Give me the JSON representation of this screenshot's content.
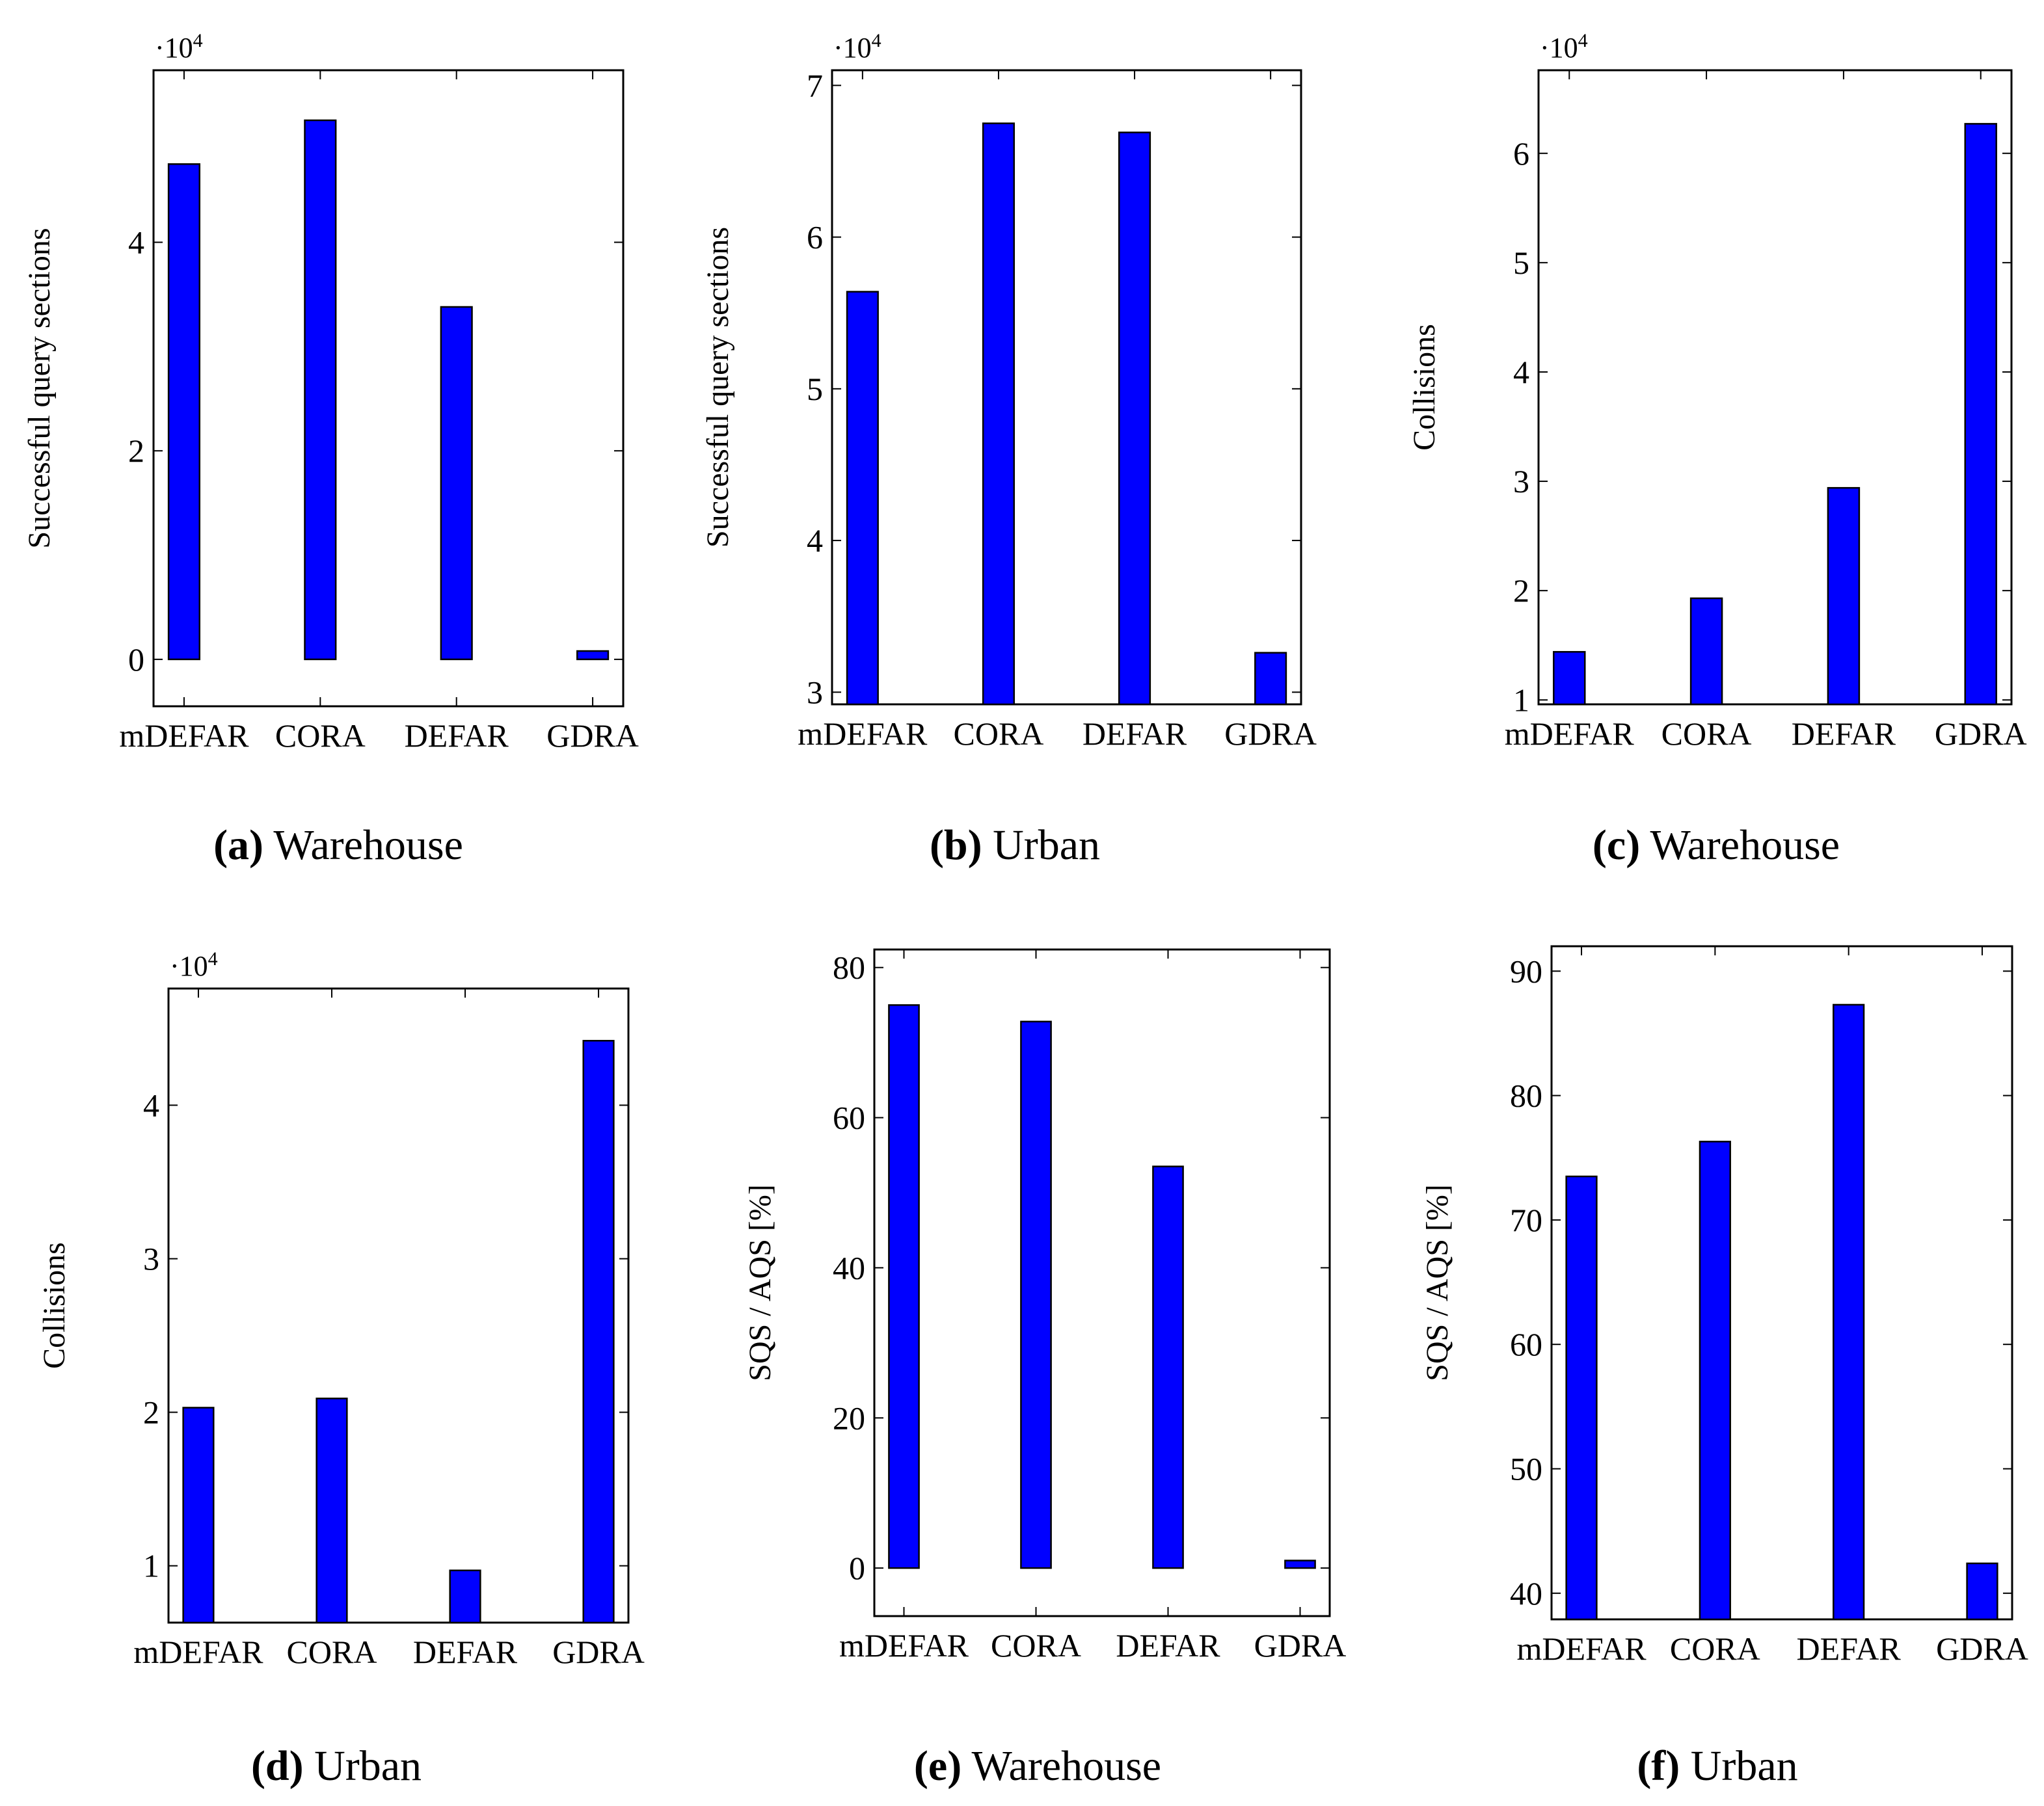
{
  "chart_data": [
    {
      "id": "a",
      "type": "bar",
      "caption_letter": "(a)",
      "caption_text": "Warehouse",
      "ylabel": "Successful query sections",
      "multiplier": "·10",
      "multiplier_exp": "4",
      "categories": [
        "mDEFAR",
        "CORA",
        "DEFAR",
        "GDRA"
      ],
      "values": [
        47500,
        51700,
        33800,
        800
      ],
      "ylim": [
        -4500,
        56500
      ],
      "yticks": [
        0,
        20000,
        40000
      ],
      "ytick_labels": [
        "0",
        "2",
        "4"
      ]
    },
    {
      "id": "b",
      "type": "bar",
      "caption_letter": "(b)",
      "caption_text": "Urban",
      "ylabel": "Successful query sections",
      "multiplier": "·10",
      "multiplier_exp": "4",
      "categories": [
        "mDEFAR",
        "CORA",
        "DEFAR",
        "GDRA"
      ],
      "values": [
        56400,
        67500,
        66900,
        32600
      ],
      "ylim": [
        29200,
        71000
      ],
      "yticks": [
        30000,
        40000,
        50000,
        60000,
        70000
      ],
      "ytick_labels": [
        "3",
        "4",
        "5",
        "6",
        "7"
      ]
    },
    {
      "id": "c",
      "type": "bar",
      "caption_letter": "(c)",
      "caption_text": "Warehouse",
      "ylabel": "Collisions",
      "multiplier": "·10",
      "multiplier_exp": "4",
      "categories": [
        "mDEFAR",
        "CORA",
        "DEFAR",
        "GDRA"
      ],
      "values": [
        14400,
        19300,
        29400,
        62700
      ],
      "ylim": [
        9600,
        67600
      ],
      "yticks": [
        10000,
        20000,
        30000,
        40000,
        50000,
        60000
      ],
      "ytick_labels": [
        "1",
        "2",
        "3",
        "4",
        "5",
        "6"
      ]
    },
    {
      "id": "d",
      "type": "bar",
      "caption_letter": "(d)",
      "caption_text": "Urban",
      "ylabel": "Collisions",
      "multiplier": "·10",
      "multiplier_exp": "4",
      "categories": [
        "mDEFAR",
        "CORA",
        "DEFAR",
        "GDRA"
      ],
      "values": [
        20300,
        20900,
        9700,
        44200
      ],
      "ylim": [
        6300,
        47600
      ],
      "yticks": [
        10000,
        20000,
        30000,
        40000
      ],
      "ytick_labels": [
        "1",
        "2",
        "3",
        "4"
      ]
    },
    {
      "id": "e",
      "type": "bar",
      "caption_letter": "(e)",
      "caption_text": "Warehouse",
      "ylabel": "SQS / AQS [%]",
      "multiplier": "",
      "multiplier_exp": "",
      "categories": [
        "mDEFAR",
        "CORA",
        "DEFAR",
        "GDRA"
      ],
      "values": [
        75,
        72.8,
        53.5,
        1
      ],
      "ylim": [
        -6.4,
        82.4
      ],
      "yticks": [
        0,
        20,
        40,
        60,
        80
      ],
      "ytick_labels": [
        "0",
        "20",
        "40",
        "60",
        "80"
      ]
    },
    {
      "id": "f",
      "type": "bar",
      "caption_letter": "(f)",
      "caption_text": "Urban",
      "ylabel": "SQS / AQS [%]",
      "multiplier": "",
      "multiplier_exp": "",
      "categories": [
        "mDEFAR",
        "CORA",
        "DEFAR",
        "GDRA"
      ],
      "values": [
        73.5,
        76.3,
        87.3,
        42.4
      ],
      "ylim": [
        37.9,
        92
      ],
      "yticks": [
        40,
        50,
        60,
        70,
        80,
        90
      ],
      "ytick_labels": [
        "40",
        "50",
        "60",
        "70",
        "80",
        "90"
      ]
    }
  ]
}
